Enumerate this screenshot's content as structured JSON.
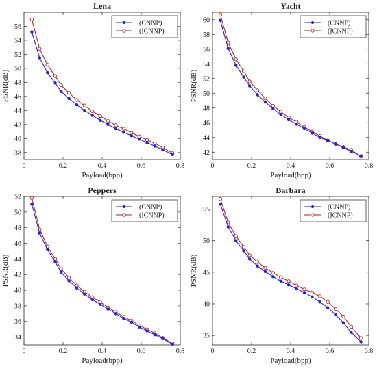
{
  "chart_data": [
    {
      "type": "line",
      "title": "Lena",
      "xlabel": "Payload(bpp)",
      "ylabel": "PSNR(dB)",
      "xlim": [
        0,
        0.8
      ],
      "ylim": [
        37,
        58
      ],
      "xticks": [
        0,
        0.2,
        0.4,
        0.6,
        0.8
      ],
      "yticks": [
        38,
        40,
        42,
        44,
        46,
        48,
        50,
        52,
        54,
        56
      ],
      "xtick_labels": [
        "0",
        "0.2",
        "0.4",
        "0.6",
        "0.8"
      ],
      "ytick_labels": [
        "38",
        "40",
        "42",
        "44",
        "46",
        "48",
        "50",
        "52",
        "54",
        "56"
      ],
      "grid": false,
      "legend_position": "top-right",
      "x": [
        0.04,
        0.08,
        0.12,
        0.16,
        0.19,
        0.23,
        0.27,
        0.31,
        0.35,
        0.39,
        0.43,
        0.47,
        0.51,
        0.55,
        0.59,
        0.63,
        0.67,
        0.71,
        0.76
      ],
      "series": [
        {
          "name": "(CNNP)",
          "color": "#1f1fe0",
          "marker": "dot",
          "values": [
            55.2,
            51.5,
            49.4,
            47.9,
            46.7,
            45.7,
            44.8,
            44.0,
            43.3,
            42.6,
            42.0,
            41.4,
            40.9,
            40.4,
            39.9,
            39.4,
            38.9,
            38.4,
            37.7
          ]
        },
        {
          "name": "(ICNNP)",
          "color": "#b22222",
          "marker": "circle",
          "values": [
            57.0,
            52.8,
            50.5,
            48.9,
            47.6,
            46.5,
            45.5,
            44.7,
            43.9,
            43.2,
            42.5,
            41.9,
            41.4,
            40.8,
            40.3,
            39.8,
            39.3,
            38.7,
            37.9
          ]
        }
      ]
    },
    {
      "type": "line",
      "title": "Yacht",
      "xlabel": "Payload(bpp)",
      "ylabel": "PSNR(dB)",
      "xlim": [
        0,
        0.8
      ],
      "ylim": [
        41,
        61
      ],
      "xticks": [
        0,
        0.2,
        0.4,
        0.6,
        0.8
      ],
      "yticks": [
        42,
        44,
        46,
        48,
        50,
        52,
        54,
        56,
        58,
        60
      ],
      "xtick_labels": [
        "0",
        "0.2",
        "0.4",
        "0.6",
        "0.8"
      ],
      "ytick_labels": [
        "42",
        "44",
        "46",
        "48",
        "50",
        "52",
        "54",
        "56",
        "58",
        "60"
      ],
      "grid": false,
      "legend_position": "top-right",
      "x": [
        0.04,
        0.08,
        0.12,
        0.16,
        0.19,
        0.23,
        0.27,
        0.31,
        0.35,
        0.39,
        0.43,
        0.47,
        0.51,
        0.55,
        0.59,
        0.63,
        0.67,
        0.71,
        0.76
      ],
      "series": [
        {
          "name": "(CNNP)",
          "color": "#1f1fe0",
          "marker": "dot",
          "values": [
            59.9,
            56.1,
            53.8,
            52.2,
            51.0,
            49.8,
            48.8,
            47.9,
            47.1,
            46.4,
            45.8,
            45.2,
            44.6,
            44.0,
            43.6,
            43.1,
            42.6,
            42.1,
            41.5
          ]
        },
        {
          "name": "(ICNNP)",
          "color": "#b22222",
          "marker": "circle",
          "values": [
            60.7,
            56.9,
            54.6,
            53.0,
            51.6,
            50.4,
            49.3,
            48.3,
            47.5,
            46.7,
            46.1,
            45.4,
            44.8,
            44.2,
            43.6,
            43.1,
            42.7,
            42.3,
            41.4
          ]
        }
      ]
    },
    {
      "type": "line",
      "title": "Peppers",
      "xlabel": "Payload(bpp)",
      "ylabel": "PSNR(dB)",
      "xlim": [
        0,
        0.8
      ],
      "ylim": [
        33,
        52
      ],
      "xticks": [
        0,
        0.2,
        0.4,
        0.6,
        0.8
      ],
      "yticks": [
        34,
        36,
        38,
        40,
        42,
        44,
        46,
        48,
        50,
        52
      ],
      "xtick_labels": [
        "0",
        "0.2",
        "0.4",
        "0.6",
        "0.8"
      ],
      "ytick_labels": [
        "34",
        "36",
        "38",
        "40",
        "42",
        "44",
        "46",
        "48",
        "50",
        "52"
      ],
      "grid": false,
      "legend_position": "top-right",
      "x": [
        0.04,
        0.08,
        0.12,
        0.16,
        0.19,
        0.23,
        0.27,
        0.31,
        0.35,
        0.39,
        0.43,
        0.47,
        0.51,
        0.55,
        0.59,
        0.63,
        0.67,
        0.71,
        0.76
      ],
      "series": [
        {
          "name": "(CNNP)",
          "color": "#1f1fe0",
          "marker": "dot",
          "values": [
            51.0,
            47.3,
            45.2,
            43.6,
            42.3,
            41.2,
            40.3,
            39.5,
            38.8,
            38.2,
            37.6,
            37.0,
            36.4,
            35.9,
            35.3,
            34.8,
            34.3,
            33.8,
            33.1
          ]
        },
        {
          "name": "(ICNNP)",
          "color": "#b22222",
          "marker": "circle",
          "values": [
            51.8,
            47.8,
            45.6,
            44.0,
            42.7,
            41.6,
            40.6,
            39.8,
            39.1,
            38.5,
            37.8,
            37.2,
            36.6,
            36.1,
            35.5,
            35.0,
            34.5,
            33.9,
            33.2
          ]
        }
      ]
    },
    {
      "type": "line",
      "title": "Barbara",
      "xlabel": "Payload(bpp)",
      "ylabel": "PSNR(dB)",
      "xlim": [
        0,
        0.8
      ],
      "ylim": [
        33.5,
        57
      ],
      "xticks": [
        0,
        0.2,
        0.4,
        0.6,
        0.8
      ],
      "yticks": [
        35,
        40,
        45,
        50,
        55
      ],
      "xtick_labels": [
        "0",
        "0.2",
        "0.4",
        "0.6",
        "0.8"
      ],
      "ytick_labels": [
        "35",
        "40",
        "45",
        "50",
        "55"
      ],
      "grid": false,
      "legend_position": "top-right",
      "x": [
        0.04,
        0.08,
        0.12,
        0.16,
        0.19,
        0.23,
        0.27,
        0.31,
        0.35,
        0.39,
        0.43,
        0.47,
        0.51,
        0.55,
        0.59,
        0.63,
        0.67,
        0.71,
        0.76
      ],
      "series": [
        {
          "name": "(CNNP)",
          "color": "#1f1fe0",
          "marker": "dot",
          "values": [
            55.8,
            52.2,
            50.0,
            48.4,
            47.1,
            46.0,
            45.1,
            44.3,
            43.6,
            43.0,
            42.4,
            41.8,
            41.1,
            40.3,
            39.4,
            38.3,
            37.0,
            35.5,
            34.0
          ]
        },
        {
          "name": "(ICNNP)",
          "color": "#b22222",
          "marker": "circle",
          "values": [
            56.6,
            52.9,
            50.7,
            49.0,
            47.7,
            46.6,
            45.7,
            44.9,
            44.2,
            43.6,
            42.9,
            42.3,
            41.8,
            41.2,
            40.3,
            39.2,
            38.0,
            36.4,
            34.6
          ]
        }
      ]
    }
  ]
}
